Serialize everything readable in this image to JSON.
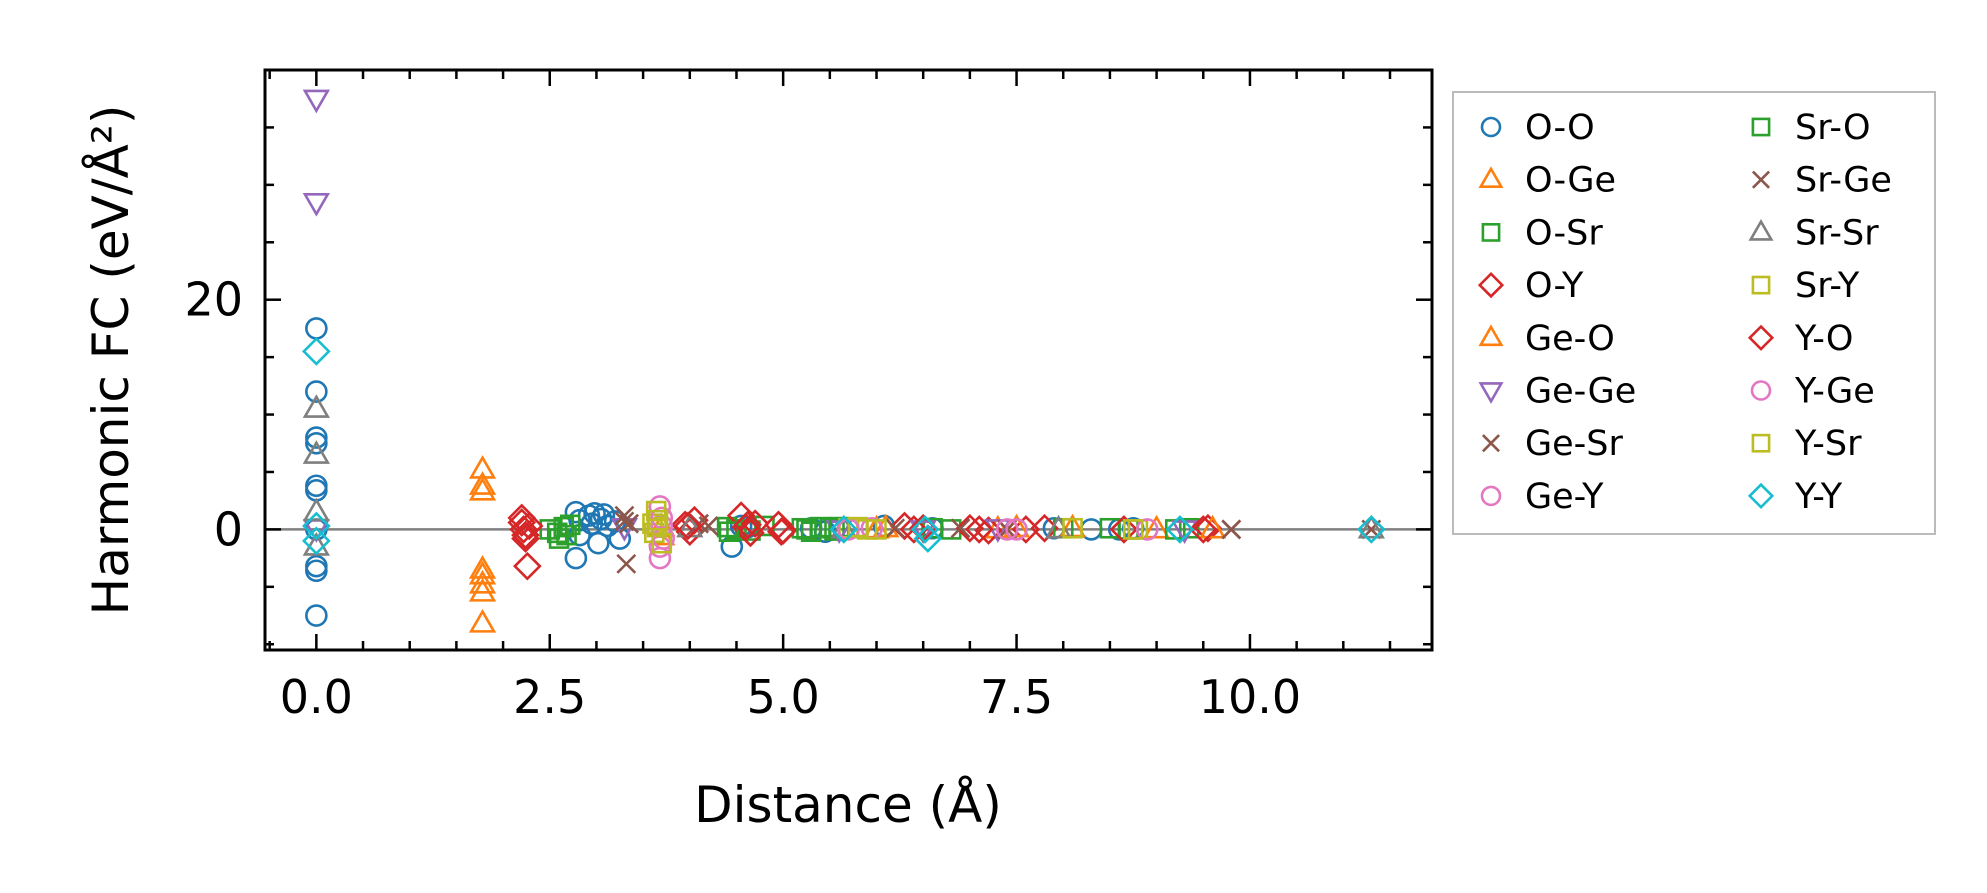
{
  "chart_data": {
    "type": "scatter",
    "title": "",
    "xlabel": "Distance (Å)",
    "ylabel": "Harmonic FC (eV/Å²)",
    "xlim": [
      -0.55,
      11.95
    ],
    "ylim": [
      -10.5,
      40.0
    ],
    "xticks": [
      0.0,
      2.5,
      5.0,
      7.5,
      10.0
    ],
    "xtick_labels": [
      "0.0",
      "2.5",
      "5.0",
      "7.5",
      "10.0"
    ],
    "yticks": [
      0,
      20
    ],
    "ytick_labels": [
      "0",
      "20"
    ],
    "x_minor_step": 0.5,
    "y_minor_step": 5,
    "zero_line": true,
    "grid": false,
    "legend_position": "outside-right",
    "legend_columns": 2,
    "series": [
      {
        "name": "O-O",
        "marker": "circle",
        "color": "#1f77b4",
        "x": [
          0,
          0,
          0,
          0,
          0,
          0,
          0,
          0,
          0,
          0,
          2.78,
          2.78,
          2.82,
          2.82,
          2.92,
          2.95,
          2.98,
          3.02,
          3.05,
          3.08,
          3.12,
          3.2,
          3.25,
          4.45,
          4.55,
          4.62,
          5.3,
          5.45,
          6.08,
          6.6,
          7.9,
          8.3,
          8.6,
          8.75
        ],
        "y": [
          17.5,
          12.0,
          8.0,
          7.5,
          3.8,
          3.4,
          -3.2,
          -3.6,
          -7.5,
          0,
          1.5,
          -2.5,
          0.8,
          -0.5,
          1.2,
          0.5,
          1.4,
          -1.2,
          0.9,
          1.3,
          0.3,
          0.7,
          -0.8,
          -1.5,
          0.3,
          0.2,
          0.1,
          -0.2,
          0.3,
          0.1,
          0.1,
          0.0,
          0.0,
          0.1
        ]
      },
      {
        "name": "O-Ge",
        "marker": "triangle-up",
        "color": "#ff7f0e",
        "x": [
          1.78,
          1.78,
          1.78,
          1.78,
          1.78,
          1.78,
          3.7,
          6.1,
          7.3,
          8.1,
          9.0
        ],
        "y": [
          5.2,
          3.8,
          3.3,
          -3.5,
          -4.8,
          -8.2,
          0.2,
          0.1,
          0.0,
          0.1,
          0.0
        ]
      },
      {
        "name": "O-Sr",
        "marker": "square",
        "color": "#2ca02c",
        "x": [
          2.5,
          2.6,
          2.68,
          2.72,
          4.4,
          4.5,
          4.65,
          4.8,
          5.2,
          5.3,
          5.4,
          5.5,
          5.55,
          6.6,
          6.8,
          8.5,
          8.7,
          9.2,
          9.35
        ],
        "y": [
          0.0,
          -0.8,
          -0.5,
          0.4,
          0.2,
          0.0,
          -0.1,
          0.3,
          0.1,
          -0.2,
          0.2,
          0.1,
          -0.1,
          0.1,
          0.0,
          0.1,
          0.0,
          0.0,
          0.1
        ]
      },
      {
        "name": "O-Y",
        "marker": "diamond",
        "color": "#d62728",
        "x": [
          2.2,
          2.22,
          2.24,
          2.26,
          2.28,
          3.95,
          4.0,
          4.05,
          4.55,
          4.6,
          4.65,
          4.7,
          4.95,
          5.0,
          6.3,
          6.4,
          7.0,
          7.2,
          7.6,
          7.8,
          8.65,
          9.55
        ],
        "y": [
          0.6,
          0.0,
          -0.5,
          -3.2,
          0.3,
          0.4,
          -0.2,
          0.8,
          1.2,
          0.2,
          -0.3,
          0.5,
          0.4,
          -0.1,
          0.3,
          0.0,
          0.1,
          -0.1,
          0.0,
          0.1,
          0.0,
          0.1
        ]
      },
      {
        "name": "Ge-O",
        "marker": "triangle-up",
        "color": "#ff7f0e",
        "x": [
          1.78,
          1.78,
          3.7,
          6.0,
          7.5,
          9.6
        ],
        "y": [
          -4.0,
          -5.5,
          -0.6,
          0.0,
          0.1,
          0.0
        ]
      },
      {
        "name": "Ge-Ge",
        "marker": "triangle-down",
        "color": "#9467bd",
        "x": [
          0,
          0,
          0,
          3.3,
          5.6,
          6.5,
          7.3,
          9.3
        ],
        "y": [
          37.5,
          28.5,
          0.1,
          0.2,
          0.0,
          0.0,
          0.1,
          0.0
        ]
      },
      {
        "name": "Ge-Sr",
        "marker": "x",
        "color": "#8c564b",
        "x": [
          3.3,
          3.32,
          3.35,
          4.2,
          6.2,
          7.4,
          9.8
        ],
        "y": [
          1.2,
          -3.0,
          0.5,
          0.3,
          0.1,
          0.0,
          0.0
        ]
      },
      {
        "name": "Ge-Y",
        "marker": "circle",
        "color": "#e377c2",
        "x": [
          3.68,
          3.68,
          3.68,
          3.7,
          5.95,
          7.4
        ],
        "y": [
          2.0,
          -1.5,
          -2.5,
          0.3,
          0.1,
          0.0
        ]
      },
      {
        "name": "Sr-O",
        "marker": "square",
        "color": "#2ca02c",
        "x": [
          2.58,
          2.65,
          4.42,
          5.25,
          5.6,
          8.0
        ],
        "y": [
          -0.3,
          0.2,
          -0.2,
          0.0,
          0.2,
          0.1
        ]
      },
      {
        "name": "Sr-Ge",
        "marker": "x",
        "color": "#8c564b",
        "x": [
          3.3,
          4.1,
          6.9,
          9.8,
          11.3
        ],
        "y": [
          0.7,
          0.5,
          0.1,
          0.0,
          0.0
        ]
      },
      {
        "name": "Sr-Sr",
        "marker": "triangle-up",
        "color": "#7f7f7f",
        "x": [
          0,
          0,
          0,
          0,
          4.0,
          5.65,
          7.95,
          11.3
        ],
        "y": [
          10.5,
          6.5,
          1.5,
          -1.5,
          0.1,
          0.0,
          0.0,
          0.0
        ]
      },
      {
        "name": "Sr-Y",
        "marker": "square",
        "color": "#bcbd22",
        "x": [
          3.6,
          3.62,
          3.65,
          5.7,
          5.9,
          8.1,
          8.8
        ],
        "y": [
          0.5,
          -0.3,
          0.2,
          0.1,
          0.0,
          0.1,
          0.0
        ]
      },
      {
        "name": "Y-O",
        "marker": "diamond",
        "color": "#d62728",
        "x": [
          2.2,
          2.24,
          3.98,
          4.62,
          4.98,
          6.5,
          7.1,
          9.5
        ],
        "y": [
          1.0,
          -0.8,
          0.3,
          0.4,
          -0.2,
          0.1,
          0.0,
          0.0
        ]
      },
      {
        "name": "Y-Ge",
        "marker": "circle",
        "color": "#e377c2",
        "x": [
          3.7,
          3.72,
          5.7,
          7.5,
          8.9
        ],
        "y": [
          1.0,
          -0.8,
          0.0,
          0.0,
          0.0
        ]
      },
      {
        "name": "Y-Sr",
        "marker": "square",
        "color": "#bcbd22",
        "x": [
          3.64,
          3.66,
          3.7,
          5.8,
          6.0,
          8.75
        ],
        "y": [
          1.6,
          0.8,
          -1.2,
          0.2,
          0.0,
          0.0
        ]
      },
      {
        "name": "Y-Y",
        "marker": "diamond",
        "color": "#17becf",
        "x": [
          0,
          0,
          0,
          5.65,
          6.52,
          6.55,
          9.25,
          11.3
        ],
        "y": [
          15.5,
          0.3,
          -1.0,
          0.0,
          0.0,
          -0.8,
          0.0,
          0.0
        ]
      }
    ]
  }
}
